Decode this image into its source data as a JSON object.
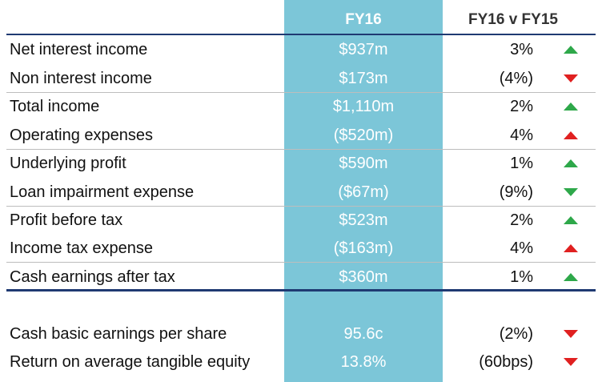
{
  "header": {
    "fy16": "FY16",
    "change": "FY16 v FY15"
  },
  "rows": [
    {
      "label": "Net interest income",
      "value": "$937m",
      "change": "3%",
      "direction": "up",
      "arrow_color": "#2ea84a"
    },
    {
      "label": "Non interest income",
      "value": "$173m",
      "change": "(4%)",
      "direction": "down",
      "arrow_color": "#e02020"
    },
    {
      "label": "Total income",
      "value": "$1,110m",
      "change": "2%",
      "direction": "up",
      "arrow_color": "#2ea84a"
    },
    {
      "label": "Operating expenses",
      "value": "($520m)",
      "change": "4%",
      "direction": "up",
      "arrow_color": "#e02020"
    },
    {
      "label": "Underlying profit",
      "value": "$590m",
      "change": "1%",
      "direction": "up",
      "arrow_color": "#2ea84a"
    },
    {
      "label": "Loan impairment expense",
      "value": "($67m)",
      "change": "(9%)",
      "direction": "down",
      "arrow_color": "#2ea84a"
    },
    {
      "label": "Profit before tax",
      "value": "$523m",
      "change": "2%",
      "direction": "up",
      "arrow_color": "#2ea84a"
    },
    {
      "label": "Income tax expense",
      "value": "($163m)",
      "change": "4%",
      "direction": "up",
      "arrow_color": "#e02020"
    },
    {
      "label": "Cash earnings after tax",
      "value": "$360m",
      "change": "1%",
      "direction": "up",
      "arrow_color": "#2ea84a"
    },
    {
      "label": "Cash basic earnings per share",
      "value": "95.6c",
      "change": "(2%)",
      "direction": "down",
      "arrow_color": "#e02020"
    },
    {
      "label": "Return on average tangible equity",
      "value": "13.8%",
      "change": "(60bps)",
      "direction": "down",
      "arrow_color": "#e02020"
    }
  ],
  "colors": {
    "highlight_column": "#7cc6d8",
    "rule_blue": "#1f3a72",
    "rule_grey": "#bdbdbd"
  }
}
